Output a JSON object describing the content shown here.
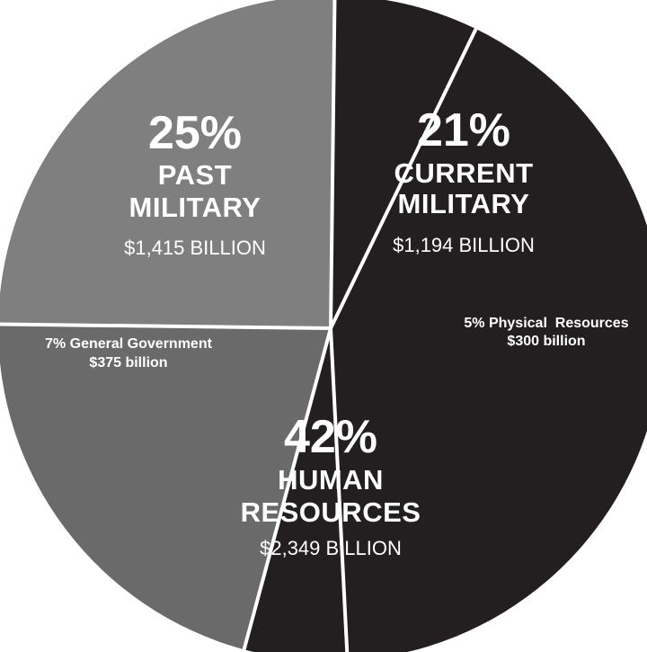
{
  "chart_data": {
    "type": "pie",
    "slices": [
      {
        "percent": 25,
        "value": 1415,
        "color": "#7f7f7f",
        "labels": {
          "percent": "25%",
          "name_line1": "PAST",
          "name_line2": "MILITARY",
          "amount": "$1,415 BILLION"
        }
      },
      {
        "percent": 21,
        "value": 1194,
        "color": "#6a6a6a",
        "labels": {
          "percent": "21%",
          "name_line1": "CURRENT",
          "name_line2": "MILITARY",
          "amount": "$1,194 BILLION"
        }
      },
      {
        "percent": 5,
        "value": 300,
        "color": "#231f20",
        "labels": {
          "line1": "5% Physical  Resources",
          "line2": "$300 billion"
        }
      },
      {
        "percent": 42,
        "value": 2349,
        "color": "#231f20",
        "labels": {
          "percent": "42%",
          "name_line1": "HUMAN",
          "name_line2": "RESOURCES",
          "amount": "$2,349 BILLION"
        }
      },
      {
        "percent": 7,
        "value": 375,
        "color": "#231f20",
        "labels": {
          "line1": "7% General Government",
          "line2": "$375 billion"
        }
      }
    ]
  }
}
